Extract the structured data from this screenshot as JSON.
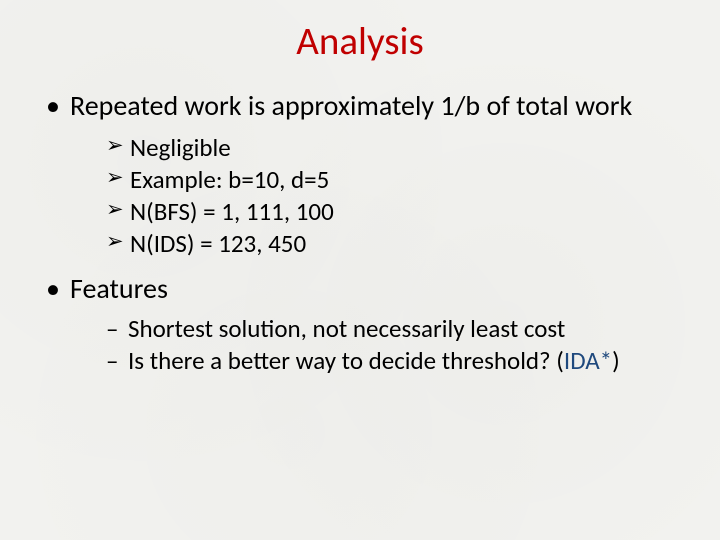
{
  "title": {
    "text": "Analysis",
    "color": "#c00000",
    "fontsize": 39
  },
  "body_fontsize_l1": 28,
  "body_fontsize_l2": 25,
  "text_color": "#000000",
  "background_color": "#f2f2ef",
  "accent_color": "#1f497d",
  "bullets": [
    {
      "text": "Repeated work is approximately 1/b of total work",
      "sub_style": "arrow",
      "sub": [
        {
          "text": "Negligible"
        },
        {
          "text": "Example:  b=10, d=5"
        },
        {
          "text": "N(BFS) = 1, 111, 100"
        },
        {
          "text": "N(IDS) = 123, 450"
        }
      ]
    },
    {
      "text": "Features",
      "sub_style": "dash",
      "sub": [
        {
          "text": "Shortest solution, not necessarily least cost"
        },
        {
          "prefix": "Is there a better way to decide threshold?  (",
          "accent": "IDA*",
          "suffix": ")"
        }
      ]
    }
  ]
}
